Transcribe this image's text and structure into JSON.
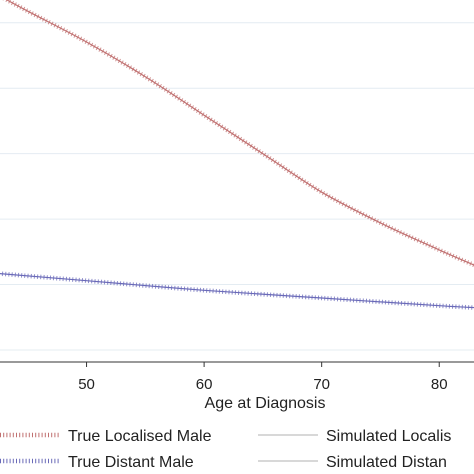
{
  "chart_data": {
    "type": "line",
    "xlabel": "Age at Diagnosis",
    "ylabel": "",
    "title": "",
    "x_ticks": [
      50,
      60,
      70,
      80
    ],
    "xlim": [
      42,
      83
    ],
    "ylim": [
      0,
      1
    ],
    "grid": true,
    "legend_position": "bottom",
    "series": [
      {
        "name": "True Localised Male",
        "color": "#c07070",
        "style": "dotted",
        "x": [
          42,
          45,
          50,
          55,
          60,
          65,
          70,
          75,
          80,
          83
        ],
        "y": [
          0.93,
          0.88,
          0.8,
          0.71,
          0.61,
          0.51,
          0.41,
          0.33,
          0.26,
          0.22
        ]
      },
      {
        "name": "True Distant Male",
        "color": "#6a6ab8",
        "style": "dotted",
        "x": [
          42,
          50,
          60,
          70,
          80,
          83
        ],
        "y": [
          0.2,
          0.18,
          0.155,
          0.135,
          0.115,
          0.11
        ]
      },
      {
        "name": "Simulated Localis",
        "color": "#c0c0c0",
        "style": "solid",
        "x": [],
        "y": []
      },
      {
        "name": "Simulated Distan",
        "color": "#c0c0c0",
        "style": "solid",
        "x": [],
        "y": []
      }
    ]
  }
}
